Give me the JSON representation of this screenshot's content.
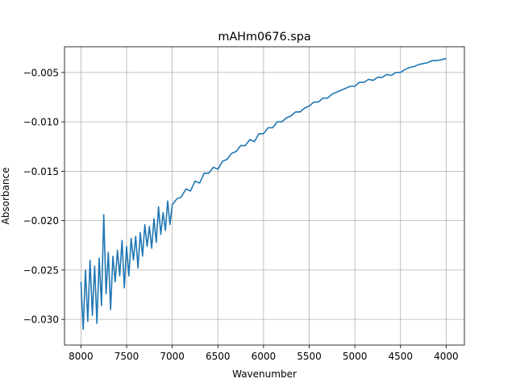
{
  "chart_data": {
    "type": "line",
    "title": "mAHm0676.spa",
    "xlabel": "Wavenumber",
    "ylabel": "Absorbance",
    "xlim": [
      8180,
      3800
    ],
    "ylim": [
      -0.0326,
      -0.0024
    ],
    "x_reversed": true,
    "grid": true,
    "x_ticks": [
      8000,
      7500,
      7000,
      6500,
      6000,
      5500,
      5000,
      4500,
      4000
    ],
    "x_tick_labels": [
      "8000",
      "7500",
      "7000",
      "6500",
      "6000",
      "5500",
      "5000",
      "4500",
      "4000"
    ],
    "y_ticks": [
      -0.03,
      -0.025,
      -0.02,
      -0.015,
      -0.01,
      -0.005
    ],
    "y_tick_labels": [
      "−0.030",
      "−0.025",
      "−0.020",
      "−0.015",
      "−0.010",
      "−0.005"
    ],
    "series": [
      {
        "color": "#1f77b4",
        "x": [
          8000,
          7975,
          7950,
          7925,
          7900,
          7875,
          7850,
          7825,
          7800,
          7775,
          7750,
          7725,
          7700,
          7675,
          7650,
          7625,
          7600,
          7575,
          7550,
          7525,
          7500,
          7475,
          7450,
          7425,
          7400,
          7375,
          7350,
          7325,
          7300,
          7275,
          7250,
          7225,
          7200,
          7175,
          7150,
          7125,
          7100,
          7075,
          7050,
          7025,
          7000,
          6950,
          6900,
          6850,
          6800,
          6750,
          6700,
          6650,
          6600,
          6550,
          6500,
          6450,
          6400,
          6350,
          6300,
          6250,
          6200,
          6150,
          6100,
          6050,
          6000,
          5950,
          5900,
          5850,
          5800,
          5750,
          5700,
          5650,
          5600,
          5550,
          5500,
          5450,
          5400,
          5350,
          5300,
          5250,
          5200,
          5150,
          5100,
          5050,
          5000,
          4950,
          4900,
          4850,
          4800,
          4750,
          4700,
          4650,
          4600,
          4550,
          4500,
          4450,
          4400,
          4350,
          4300,
          4250,
          4200,
          4150,
          4100,
          4050,
          4000
        ],
        "y": [
          -0.0262,
          -0.031,
          -0.025,
          -0.0302,
          -0.024,
          -0.0296,
          -0.0246,
          -0.0304,
          -0.0238,
          -0.0286,
          -0.0194,
          -0.0274,
          -0.0232,
          -0.029,
          -0.0236,
          -0.0262,
          -0.023,
          -0.0256,
          -0.022,
          -0.0268,
          -0.0226,
          -0.0256,
          -0.0218,
          -0.024,
          -0.0216,
          -0.0248,
          -0.0212,
          -0.0236,
          -0.0204,
          -0.0226,
          -0.0206,
          -0.0228,
          -0.0198,
          -0.0222,
          -0.0186,
          -0.0214,
          -0.0192,
          -0.021,
          -0.018,
          -0.0204,
          -0.0184,
          -0.0178,
          -0.0176,
          -0.0168,
          -0.017,
          -0.016,
          -0.0162,
          -0.0152,
          -0.0152,
          -0.0146,
          -0.0148,
          -0.014,
          -0.0138,
          -0.0132,
          -0.013,
          -0.0124,
          -0.0124,
          -0.0118,
          -0.012,
          -0.0112,
          -0.0112,
          -0.0106,
          -0.0106,
          -0.01,
          -0.01,
          -0.0096,
          -0.0094,
          -0.009,
          -0.009,
          -0.0086,
          -0.0084,
          -0.008,
          -0.008,
          -0.0076,
          -0.0076,
          -0.0072,
          -0.007,
          -0.0068,
          -0.0066,
          -0.0064,
          -0.0064,
          -0.006,
          -0.006,
          -0.0057,
          -0.0058,
          -0.0055,
          -0.0055,
          -0.0052,
          -0.0053,
          -0.005,
          -0.005,
          -0.0047,
          -0.0045,
          -0.0044,
          -0.0042,
          -0.0041,
          -0.004,
          -0.0038,
          -0.0038,
          -0.0037,
          -0.0036
        ]
      }
    ]
  }
}
